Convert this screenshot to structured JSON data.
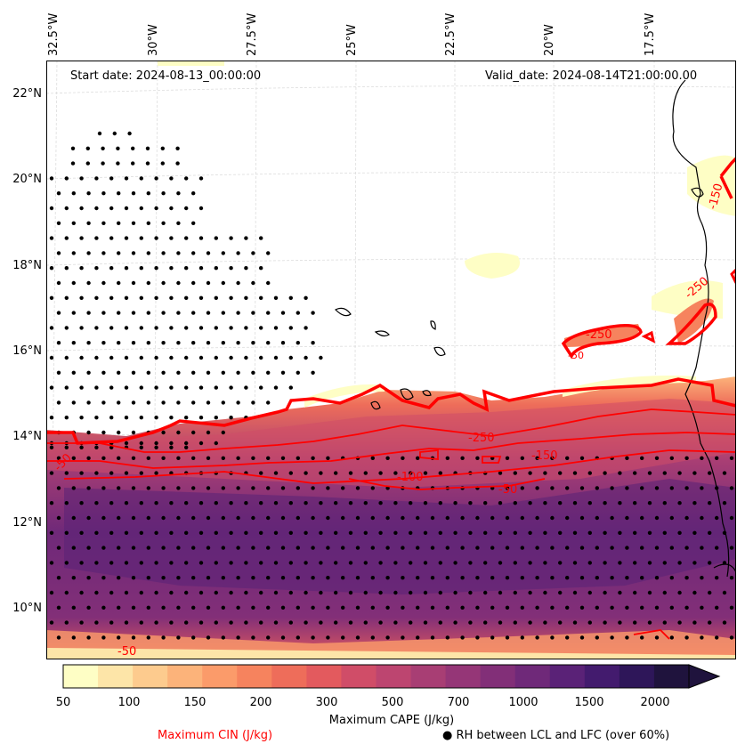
{
  "header": {
    "start_date": "Start date: 2024-08-13_00:00:00",
    "valid_date": "Valid_date: 2024-08-14T21:00:00.00"
  },
  "axes": {
    "lon_labels": [
      "32.5°W",
      "30°W",
      "27.5°W",
      "25°W",
      "22.5°W",
      "20°W",
      "17.5°W"
    ],
    "lat_labels": [
      "22°N",
      "20°N",
      "18°N",
      "16°N",
      "14°N",
      "12°N",
      "10°N"
    ]
  },
  "contours": {
    "cin_labels": [
      "-250",
      "-150",
      "-100",
      "-50",
      "-50",
      "-250",
      "-250",
      "-150",
      "-50",
      "-50"
    ]
  },
  "colorbar": {
    "title": "Maximum CAPE (J/kg)",
    "ticks": [
      "50",
      "100",
      "150",
      "200",
      "300",
      "500",
      "700",
      "1000",
      "1500",
      "2000"
    ],
    "colors": [
      "#fefec5",
      "#fde5a8",
      "#fdcb8e",
      "#fcb37a",
      "#fb9b6a",
      "#f6835e",
      "#ee6d5a",
      "#e35a5e",
      "#d04d68",
      "#bd4570",
      "#a83e74",
      "#953677",
      "#822f78",
      "#6f2979",
      "#5a2277",
      "#431b6e",
      "#2e1659",
      "#1f133d"
    ]
  },
  "legend": {
    "cin_label": "Maximum CIN (J/kg)",
    "rh_label": "RH between LCL and LFC (over 60%)",
    "cin_color": "#ff0000"
  }
}
